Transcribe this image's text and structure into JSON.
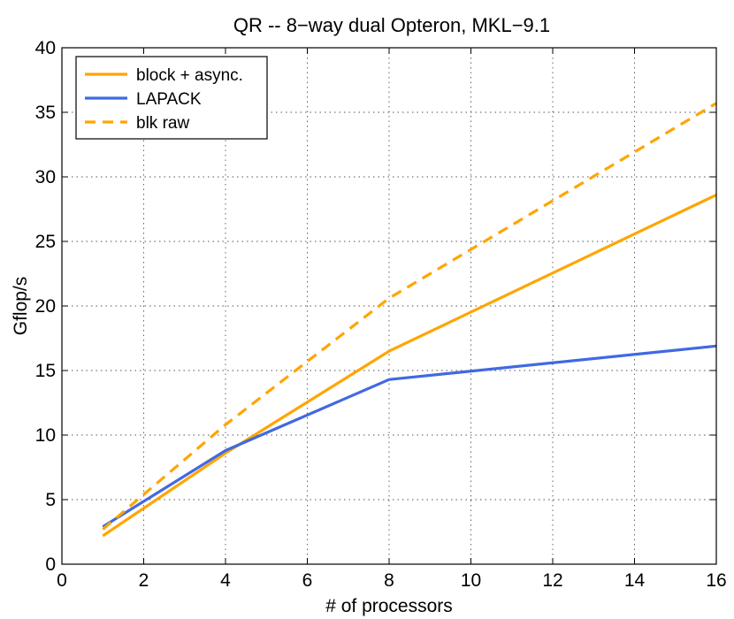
{
  "chart_data": {
    "type": "line",
    "title": "QR -- 8−way dual Opteron, MKL−9.1",
    "xlabel": "# of processors",
    "ylabel": "Gflop/s",
    "xlim": [
      0,
      16
    ],
    "ylim": [
      0,
      40
    ],
    "xticks": [
      "0",
      "2",
      "4",
      "6",
      "8",
      "10",
      "12",
      "14",
      "16"
    ],
    "yticks": [
      "0",
      "5",
      "10",
      "15",
      "20",
      "25",
      "30",
      "35",
      "40"
    ],
    "grid": true,
    "legend_position": "top-left",
    "series": [
      {
        "name": "block + async.",
        "color": "#ffa500",
        "style": "solid",
        "x": [
          1,
          4,
          8,
          16
        ],
        "y": [
          2.2,
          8.6,
          16.5,
          28.6
        ]
      },
      {
        "name": "LAPACK",
        "color": "#4169e1",
        "style": "solid",
        "x": [
          1,
          4,
          8,
          16
        ],
        "y": [
          2.9,
          8.8,
          14.3,
          16.9
        ]
      },
      {
        "name": "blk raw",
        "color": "#ffa500",
        "style": "dashed",
        "x": [
          1,
          4,
          8,
          16
        ],
        "y": [
          2.7,
          10.8,
          20.6,
          35.7
        ]
      }
    ]
  }
}
